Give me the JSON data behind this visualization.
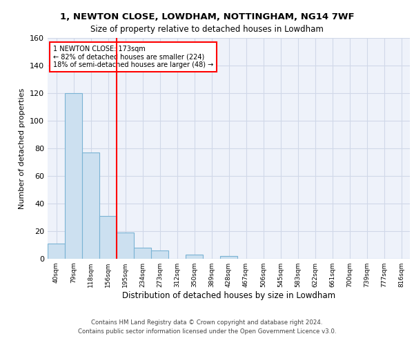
{
  "title1": "1, NEWTON CLOSE, LOWDHAM, NOTTINGHAM, NG14 7WF",
  "title2": "Size of property relative to detached houses in Lowdham",
  "xlabel": "Distribution of detached houses by size in Lowdham",
  "ylabel": "Number of detached properties",
  "footer1": "Contains HM Land Registry data © Crown copyright and database right 2024.",
  "footer2": "Contains public sector information licensed under the Open Government Licence v3.0.",
  "bar_labels": [
    "40sqm",
    "79sqm",
    "118sqm",
    "156sqm",
    "195sqm",
    "234sqm",
    "273sqm",
    "312sqm",
    "350sqm",
    "389sqm",
    "428sqm",
    "467sqm",
    "506sqm",
    "545sqm",
    "583sqm",
    "622sqm",
    "661sqm",
    "700sqm",
    "739sqm",
    "777sqm",
    "816sqm"
  ],
  "bar_values": [
    11,
    120,
    77,
    31,
    19,
    8,
    6,
    0,
    3,
    0,
    2,
    0,
    0,
    0,
    0,
    0,
    0,
    0,
    0,
    0,
    0
  ],
  "bar_color": "#cce0f0",
  "bar_edge_color": "#7ab3d4",
  "grid_color": "#d0d8e8",
  "background_color": "#eef2fa",
  "annotation_text": "1 NEWTON CLOSE: 173sqm\n← 82% of detached houses are smaller (224)\n18% of semi-detached houses are larger (48) →",
  "annotation_box_color": "white",
  "annotation_box_edge_color": "red",
  "vline_x": 3.5,
  "vline_color": "red",
  "ylim": [
    0,
    160
  ],
  "yticks": [
    0,
    20,
    40,
    60,
    80,
    100,
    120,
    140,
    160
  ]
}
